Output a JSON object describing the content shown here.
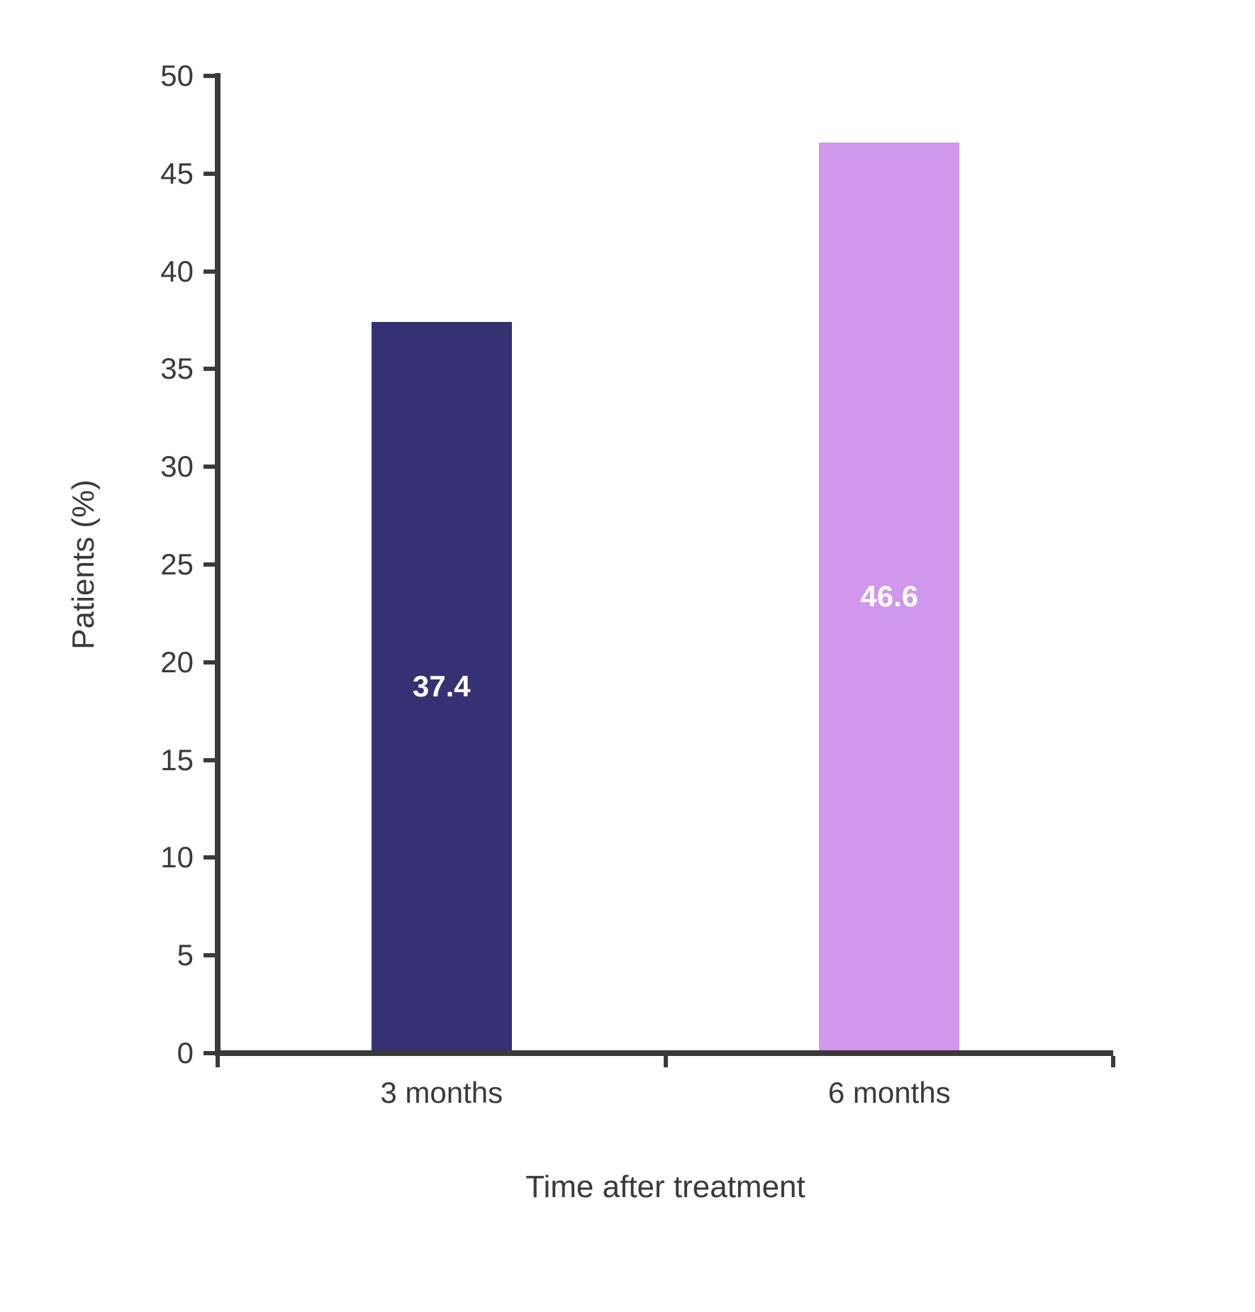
{
  "chart_data": {
    "type": "bar",
    "title": "",
    "categories": [
      "3 months",
      "6 months"
    ],
    "values": [
      37.4,
      46.6
    ],
    "value_labels": [
      "37.4",
      "46.6"
    ],
    "xlabel": "Time after treatment",
    "ylabel": "Patients (%)",
    "ylim": [
      0,
      50
    ],
    "yticks": [
      0,
      5,
      10,
      15,
      20,
      25,
      30,
      35,
      40,
      45,
      50
    ],
    "grid": false,
    "legend_position": "none",
    "bar_colors": [
      "#363173",
      "#d197ec"
    ],
    "value_label_color": "#ffffff",
    "axis_color": "#3a3a3a",
    "text_color": "#3a3a3a",
    "background": "#ffffff"
  }
}
